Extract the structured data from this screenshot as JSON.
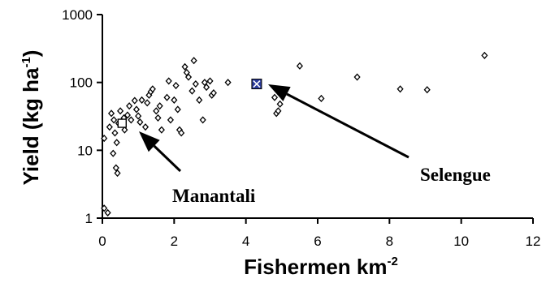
{
  "chart_data": {
    "type": "scatter",
    "title": "",
    "xlabel_main": "Fishermen km",
    "xlabel_sup": "-2",
    "ylabel_main": "Yield (kg ha",
    "ylabel_sup": "-1",
    "ylabel_close": ")",
    "x_scale": "linear",
    "y_scale": "log",
    "xlim": [
      0,
      12
    ],
    "ylim": [
      1,
      1000
    ],
    "x_ticks": [
      "0",
      "2",
      "4",
      "6",
      "8",
      "10",
      "12"
    ],
    "y_ticks": [
      "1",
      "10",
      "100",
      "1000"
    ],
    "grid": false,
    "legend": "none",
    "marker_color": "#000000",
    "highlight_color": "#2a3a9a",
    "series": [
      {
        "marker": "diamond",
        "points": [
          [
            0.05,
            1.4
          ],
          [
            0.15,
            1.2
          ],
          [
            0.05,
            15
          ],
          [
            0.2,
            22
          ],
          [
            0.25,
            35
          ],
          [
            0.3,
            9
          ],
          [
            0.32,
            28
          ],
          [
            0.35,
            18
          ],
          [
            0.4,
            13
          ],
          [
            0.38,
            5.5
          ],
          [
            0.42,
            4.6
          ],
          [
            0.45,
            25
          ],
          [
            0.5,
            38
          ],
          [
            0.55,
            27
          ],
          [
            0.6,
            30
          ],
          [
            0.62,
            20
          ],
          [
            0.7,
            33
          ],
          [
            0.75,
            45
          ],
          [
            0.8,
            28
          ],
          [
            0.9,
            54
          ],
          [
            0.95,
            40
          ],
          [
            1.0,
            32
          ],
          [
            1.05,
            26
          ],
          [
            1.1,
            55
          ],
          [
            1.2,
            22
          ],
          [
            1.25,
            50
          ],
          [
            1.3,
            65
          ],
          [
            1.35,
            73
          ],
          [
            1.4,
            80
          ],
          [
            1.5,
            38
          ],
          [
            1.55,
            30
          ],
          [
            1.6,
            45
          ],
          [
            1.65,
            20
          ],
          [
            1.8,
            60
          ],
          [
            1.85,
            105
          ],
          [
            1.9,
            28
          ],
          [
            2.0,
            55
          ],
          [
            2.05,
            90
          ],
          [
            2.1,
            40
          ],
          [
            2.15,
            20
          ],
          [
            2.2,
            18
          ],
          [
            2.3,
            170
          ],
          [
            2.35,
            140
          ],
          [
            2.4,
            120
          ],
          [
            2.5,
            75
          ],
          [
            2.55,
            210
          ],
          [
            2.6,
            95
          ],
          [
            2.7,
            55
          ],
          [
            2.8,
            28
          ],
          [
            2.85,
            100
          ],
          [
            2.9,
            85
          ],
          [
            3.0,
            105
          ],
          [
            3.05,
            65
          ],
          [
            3.1,
            70
          ],
          [
            3.5,
            100
          ],
          [
            4.8,
            60
          ],
          [
            4.85,
            35
          ],
          [
            4.9,
            38
          ],
          [
            4.95,
            48
          ],
          [
            5.5,
            175
          ],
          [
            6.1,
            58
          ],
          [
            7.1,
            120
          ],
          [
            8.3,
            80
          ],
          [
            9.05,
            78
          ],
          [
            10.65,
            250
          ]
        ]
      }
    ],
    "annotations": [
      {
        "text": "Manantali",
        "x": 0.55,
        "y": 25,
        "marker": "square-outline"
      },
      {
        "text": "Selengue",
        "x": 4.3,
        "y": 95,
        "marker": "square-x-filled"
      }
    ]
  }
}
